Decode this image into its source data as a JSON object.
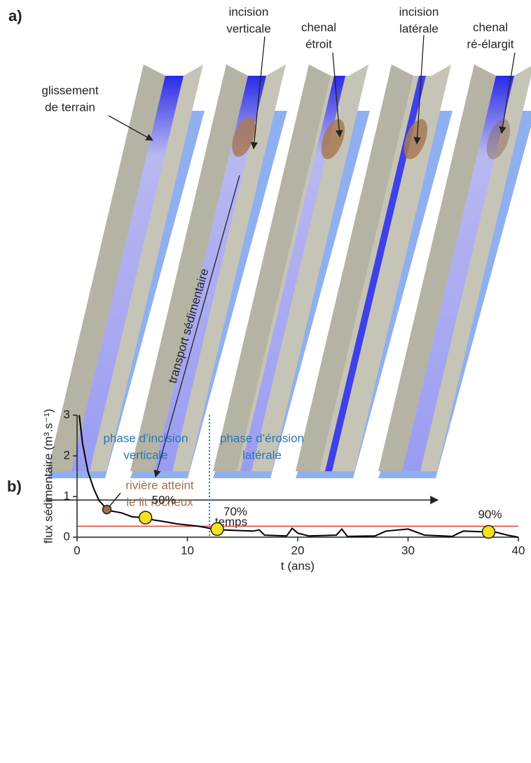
{
  "panel_a": {
    "label": "a)",
    "annotations": [
      {
        "lines": [
          "glissement",
          "de terrain"
        ]
      },
      {
        "lines": [
          "incision",
          "verticale"
        ]
      },
      {
        "lines": [
          "chenal",
          "étroit"
        ]
      },
      {
        "lines": [
          "incision",
          "latérale"
        ]
      },
      {
        "lines": [
          "chenal",
          "ré-élargit"
        ]
      }
    ],
    "transport": "transport sédimentaire",
    "time": "temps"
  },
  "panel_b_label": "b)",
  "chart_data": {
    "type": "line",
    "x": [
      0.2,
      0.5,
      1,
      1.5,
      2,
      2.5,
      3,
      4,
      5,
      6,
      7,
      8,
      9,
      10,
      11,
      12,
      13,
      14,
      15,
      16,
      16.5,
      17,
      19,
      19.5,
      20,
      21,
      23.5,
      24,
      24.5,
      27,
      28,
      30,
      31.5,
      34,
      35,
      38,
      39,
      40
    ],
    "values": [
      3,
      2.3,
      1.6,
      1.2,
      0.9,
      0.75,
      0.65,
      0.6,
      0.5,
      0.48,
      0.42,
      0.38,
      0.33,
      0.3,
      0.27,
      0.22,
      0.18,
      0.17,
      0.16,
      0.15,
      0.18,
      0.05,
      0.03,
      0.22,
      0.1,
      0.03,
      0.05,
      0.2,
      0.02,
      0.03,
      0.15,
      0.2,
      0.05,
      0.02,
      0.15,
      0.12,
      0.05,
      0
    ],
    "color": "#000000",
    "xlim": [
      0,
      40
    ],
    "ylim": [
      0,
      3
    ],
    "xticks": [
      0,
      10,
      20,
      30,
      40
    ],
    "yticks": [
      0,
      1,
      2,
      3
    ],
    "xlabel": "t (ans)",
    "ylabel": "flux sédimentaire (m³.s⁻¹)",
    "threshold": {
      "value": 0.27,
      "color": "#e03c3c"
    },
    "divider": {
      "x": 12,
      "color": "#2878b4"
    },
    "phases": [
      {
        "lines": [
          "phase d’incision",
          "verticale"
        ],
        "color": "#2878b4"
      },
      {
        "lines": [
          "phase d’érosion",
          "latérale"
        ],
        "color": "#2878b4"
      }
    ],
    "markers": [
      {
        "x": 2.7,
        "y": 0.68,
        "color": "#a0704a",
        "annotation": [
          "rivière atteint",
          "le lit rocheux"
        ]
      },
      {
        "x": 6.2,
        "y": 0.48,
        "color": "#f5e11e",
        "label": "50%"
      },
      {
        "x": 12.7,
        "y": 0.2,
        "color": "#f5e11e",
        "label": "70%"
      },
      {
        "x": 37.3,
        "y": 0.13,
        "color": "#f5e11e",
        "label": "90%"
      }
    ]
  }
}
